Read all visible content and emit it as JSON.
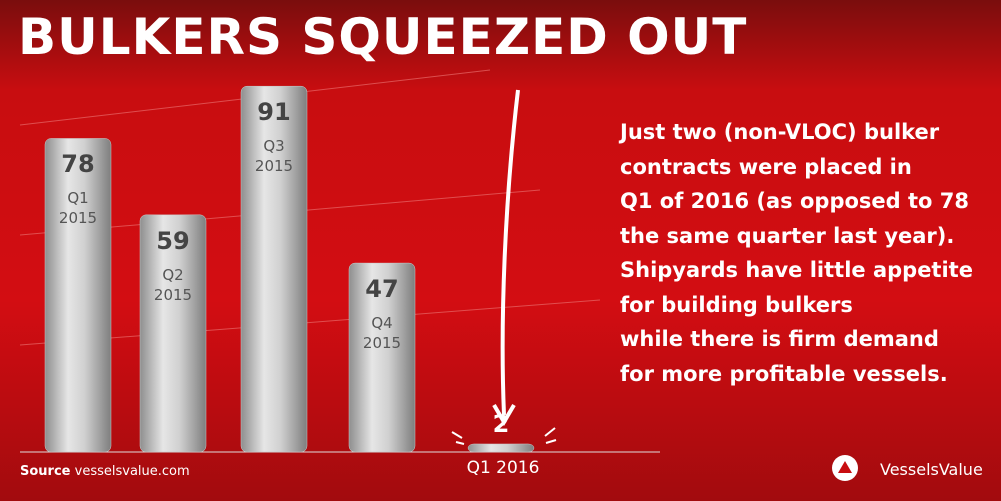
{
  "chart_data": {
    "type": "bar",
    "title": "BULKERS SQUEEZED OUT",
    "categories": [
      "Q1 2015",
      "Q2 2015",
      "Q3 2015",
      "Q4 2015",
      "Q1 2016"
    ],
    "values": [
      78,
      59,
      91,
      47,
      2
    ],
    "color": "#c9c9c9",
    "ylim": [
      0,
      100
    ],
    "note_lines": [
      "Just two (non-VLOC) bulker",
      "contracts were placed in",
      "Q1 of 2016 (as opposed to 78",
      "the same quarter last year).",
      "Shipyards have little appetite",
      "for building bulkers",
      "while there is firm demand",
      "for more profitable vessels."
    ],
    "source": {
      "label": "Source",
      "text": "vesselsvalue.com"
    },
    "brand": "VesselsValue"
  }
}
